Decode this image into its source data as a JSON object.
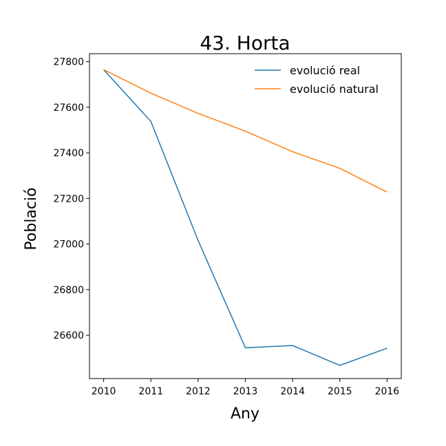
{
  "chart_data": {
    "type": "line",
    "title": "43. Horta",
    "xlabel": "Any",
    "ylabel": "Població",
    "x": [
      2010,
      2011,
      2012,
      2013,
      2014,
      2015,
      2016
    ],
    "xticks": [
      "2010",
      "2011",
      "2012",
      "2013",
      "2014",
      "2015",
      "2016"
    ],
    "yticks": [
      "26600",
      "26800",
      "27000",
      "27200",
      "27400",
      "27600",
      "27800"
    ],
    "ylim": [
      26410,
      27835
    ],
    "grid": false,
    "legend_position": "top-right",
    "series": [
      {
        "name": "evolució real",
        "color": "#1f77b4",
        "values": [
          27765,
          27538,
          27015,
          26545,
          26555,
          26468,
          26543
        ]
      },
      {
        "name": "evolució natural",
        "color": "#ff7f0e",
        "values": [
          27765,
          27662,
          27573,
          27495,
          27405,
          27332,
          27228
        ]
      }
    ]
  }
}
